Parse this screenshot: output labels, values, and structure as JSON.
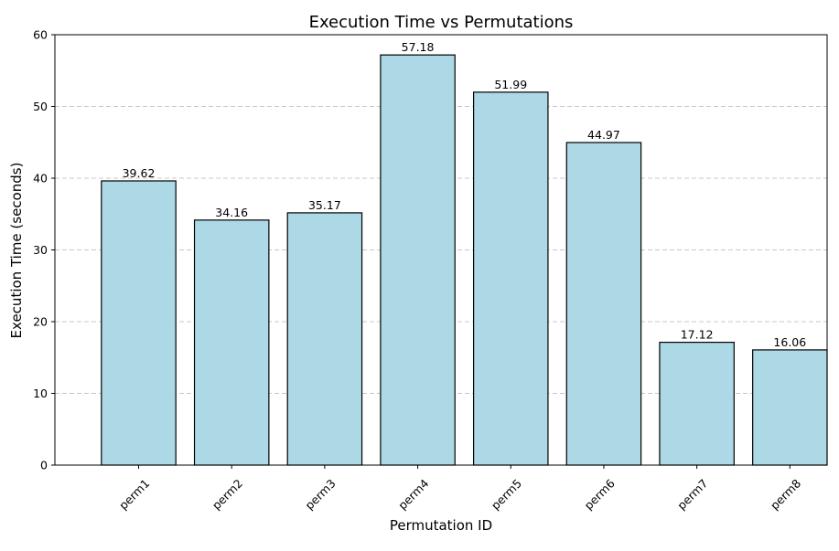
{
  "chart_data": {
    "type": "bar",
    "title": "Execution Time vs Permutations",
    "xlabel": "Permutation ID",
    "ylabel": "Execution Time (seconds)",
    "categories": [
      "perm1",
      "perm2",
      "perm3",
      "perm4",
      "perm5",
      "perm6",
      "perm7",
      "perm8"
    ],
    "values": [
      39.62,
      34.16,
      35.17,
      57.18,
      51.99,
      44.97,
      17.12,
      16.06
    ],
    "value_labels": [
      "39.62",
      "34.16",
      "35.17",
      "57.18",
      "51.99",
      "44.97",
      "17.12",
      "16.06"
    ],
    "ylim": [
      0,
      60
    ],
    "yticks": [
      0,
      10,
      20,
      30,
      40,
      50,
      60
    ],
    "ytick_labels": [
      "0",
      "10",
      "20",
      "30",
      "40",
      "50",
      "60"
    ],
    "grid": "y-dashed",
    "bar_color": "#add8e6",
    "bar_edge_color": "#000000",
    "grid_color": "#c8c8c8"
  }
}
